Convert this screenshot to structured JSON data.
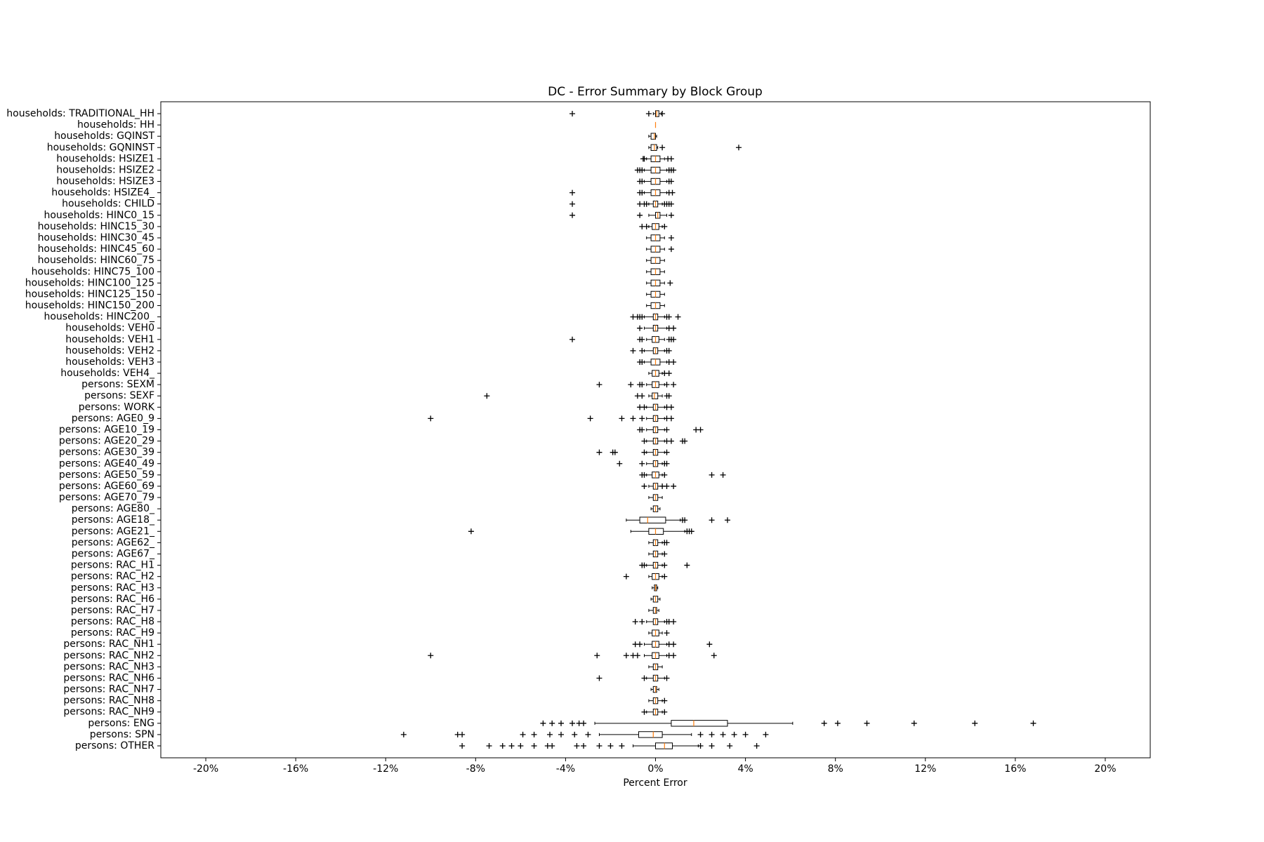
{
  "chart_data": {
    "type": "boxplot",
    "title": "DC - Error Summary by Block Group",
    "xlabel": "Percent Error",
    "orientation": "horizontal",
    "box_color": "#000000",
    "median_color": "#ff7f0e",
    "xlim": [
      -22,
      22
    ],
    "xticks": [
      {
        "value": -20,
        "label": "-20%"
      },
      {
        "value": -16,
        "label": "-16%"
      },
      {
        "value": -12,
        "label": "-12%"
      },
      {
        "value": -8,
        "label": "-8%"
      },
      {
        "value": -4,
        "label": "-4%"
      },
      {
        "value": 0,
        "label": "0%"
      },
      {
        "value": 4,
        "label": "4%"
      },
      {
        "value": 8,
        "label": "8%"
      },
      {
        "value": 12,
        "label": "12%"
      },
      {
        "value": 16,
        "label": "16%"
      },
      {
        "value": 20,
        "label": "20%"
      }
    ],
    "categories": [
      "households: TRADITIONAL_HH",
      "households: HH",
      "households: GQINST",
      "households: GQNINST",
      "households: HSIZE1",
      "households: HSIZE2",
      "households: HSIZE3",
      "households: HSIZE4_",
      "households: CHILD",
      "households: HINC0_15",
      "households: HINC15_30",
      "households: HINC30_45",
      "households: HINC45_60",
      "households: HINC60_75",
      "households: HINC75_100",
      "households: HINC100_125",
      "households: HINC125_150",
      "households: HINC150_200",
      "households: HINC200_",
      "households: VEH0",
      "households: VEH1",
      "households: VEH2",
      "households: VEH3",
      "households: VEH4_",
      "persons: SEXM",
      "persons: SEXF",
      "persons: WORK",
      "persons: AGE0_9",
      "persons: AGE10_19",
      "persons: AGE20_29",
      "persons: AGE30_39",
      "persons: AGE40_49",
      "persons: AGE50_59",
      "persons: AGE60_69",
      "persons: AGE70_79",
      "persons: AGE80_",
      "persons: AGE18_",
      "persons: AGE21_",
      "persons: AGE62_",
      "persons: AGE67_",
      "persons: RAC_H1",
      "persons: RAC_H2",
      "persons: RAC_H3",
      "persons: RAC_H6",
      "persons: RAC_H7",
      "persons: RAC_H8",
      "persons: RAC_H9",
      "persons: RAC_NH1",
      "persons: RAC_NH2",
      "persons: RAC_NH3",
      "persons: RAC_NH6",
      "persons: RAC_NH7",
      "persons: RAC_NH8",
      "persons: RAC_NH9",
      "persons: ENG",
      "persons: SPN",
      "persons: OTHER"
    ],
    "whislo": [
      -0.1,
      0,
      -0.3,
      -0.3,
      -0.4,
      -0.5,
      -0.5,
      -0.5,
      -0.3,
      -0.3,
      -0.3,
      -0.4,
      -0.4,
      -0.4,
      -0.4,
      -0.4,
      -0.4,
      -0.4,
      -0.5,
      -0.5,
      -0.4,
      -0.5,
      -0.5,
      -0.3,
      -0.4,
      -0.3,
      -0.4,
      -0.4,
      -0.4,
      -0.4,
      -0.4,
      -0.4,
      -0.4,
      -0.3,
      -0.3,
      -0.2,
      -1.3,
      -1.1,
      -0.3,
      -0.3,
      -0.4,
      -0.3,
      -0.15,
      -0.2,
      -0.3,
      -0.4,
      -0.3,
      -0.5,
      -0.5,
      -0.3,
      -0.4,
      -0.2,
      -0.3,
      -0.4,
      -2.7,
      -2.5,
      -1.0
    ],
    "q1": [
      0,
      0,
      -0.2,
      -0.2,
      -0.2,
      -0.2,
      -0.2,
      -0.2,
      -0.1,
      0,
      -0.15,
      -0.2,
      -0.2,
      -0.2,
      -0.2,
      -0.2,
      -0.2,
      -0.2,
      -0.1,
      -0.1,
      -0.15,
      -0.1,
      -0.2,
      -0.15,
      -0.15,
      -0.15,
      -0.1,
      -0.1,
      -0.1,
      -0.1,
      -0.1,
      -0.1,
      -0.15,
      -0.1,
      -0.1,
      -0.1,
      -0.7,
      -0.3,
      -0.1,
      -0.1,
      -0.1,
      -0.15,
      -0.05,
      -0.1,
      -0.1,
      -0.1,
      -0.15,
      -0.15,
      -0.15,
      -0.1,
      -0.1,
      -0.1,
      -0.1,
      -0.1,
      0.7,
      -0.75,
      0
    ],
    "med": [
      0.05,
      0,
      -0.05,
      -0.05,
      0,
      0,
      0,
      0,
      0,
      0.1,
      0,
      0,
      0,
      0,
      0,
      0,
      0,
      0,
      0,
      0,
      0,
      0,
      0,
      0,
      0,
      -0.05,
      0,
      0,
      0,
      0,
      0,
      0,
      0,
      0,
      0,
      0,
      -0.35,
      0,
      0,
      0,
      0,
      0,
      0,
      0,
      0,
      0,
      0,
      0,
      0,
      0,
      0,
      0,
      0,
      0,
      1.7,
      -0.1,
      0.4
    ],
    "q3": [
      0.15,
      0,
      0,
      0.05,
      0.2,
      0.2,
      0.2,
      0.2,
      0.1,
      0.2,
      0.15,
      0.2,
      0.2,
      0.2,
      0.2,
      0.2,
      0.2,
      0.2,
      0.1,
      0.1,
      0.15,
      0.1,
      0.2,
      0.15,
      0.15,
      0.1,
      0.1,
      0.1,
      0.1,
      0.1,
      0.1,
      0.1,
      0.15,
      0.1,
      0.1,
      0.1,
      0.45,
      0.35,
      0.1,
      0.1,
      0.1,
      0.15,
      0.05,
      0.1,
      0.05,
      0.1,
      0.15,
      0.15,
      0.15,
      0.1,
      0.1,
      0.05,
      0.1,
      0.1,
      3.2,
      0.3,
      0.75
    ],
    "whishi": [
      0.25,
      0,
      0.05,
      0.1,
      0.4,
      0.5,
      0.5,
      0.5,
      0.3,
      0.5,
      0.3,
      0.4,
      0.4,
      0.4,
      0.4,
      0.4,
      0.4,
      0.4,
      0.4,
      0.5,
      0.4,
      0.4,
      0.5,
      0.3,
      0.4,
      0.3,
      0.4,
      0.4,
      0.4,
      0.4,
      0.4,
      0.3,
      0.3,
      0.3,
      0.3,
      0.2,
      1.1,
      1.3,
      0.3,
      0.3,
      0.3,
      0.3,
      0.1,
      0.2,
      0.15,
      0.4,
      0.3,
      0.5,
      0.5,
      0.3,
      0.4,
      0.15,
      0.3,
      0.3,
      6.1,
      1.6,
      1.9
    ],
    "fliers": [
      [
        -3.7,
        -0.3,
        0.3
      ],
      [],
      [],
      [
        0.3,
        3.7
      ],
      [
        -0.55,
        -0.5,
        0.55,
        0.7
      ],
      [
        -0.8,
        -0.7,
        -0.6,
        0.6,
        0.7,
        0.8
      ],
      [
        -0.7,
        -0.6,
        0.6,
        0.7
      ],
      [
        -3.7,
        -0.7,
        -0.6,
        0.6,
        0.75
      ],
      [
        -3.7,
        -0.7,
        -0.5,
        -0.4,
        0.4,
        0.5,
        0.6,
        0.7
      ],
      [
        -3.7,
        -0.7,
        0.7
      ],
      [
        -0.6,
        -0.4,
        0.4
      ],
      [
        0.7
      ],
      [
        0.7
      ],
      [],
      [],
      [
        0.65
      ],
      [],
      [],
      [
        -1.0,
        -0.8,
        -0.7,
        -0.6,
        0.5,
        0.6,
        1.0
      ],
      [
        -0.7,
        0.6,
        0.8
      ],
      [
        -3.7,
        -0.7,
        -0.6,
        0.6,
        0.7,
        0.8
      ],
      [
        -1.0,
        -0.6,
        0.5,
        0.6
      ],
      [
        -0.7,
        -0.6,
        0.6,
        0.8
      ],
      [
        0.4,
        0.6
      ],
      [
        -2.5,
        -1.1,
        -0.7,
        -0.6,
        0.5,
        0.8
      ],
      [
        -7.5,
        -0.8,
        -0.6,
        0.5,
        0.6
      ],
      [
        -0.7,
        -0.5,
        0.5,
        0.7
      ],
      [
        -10,
        -2.9,
        -1.5,
        -1.0,
        -0.6,
        0.5,
        0.7
      ],
      [
        -0.7,
        -0.6,
        0.5,
        1.8,
        2.0
      ],
      [
        -0.5,
        0.5,
        0.7,
        1.2,
        1.3
      ],
      [
        -2.5,
        -1.9,
        -1.8,
        -0.5,
        0.5
      ],
      [
        -1.6,
        -0.6,
        0.4,
        0.5
      ],
      [
        -0.6,
        -0.5,
        0.4,
        2.5,
        3.0
      ],
      [
        -0.5,
        0.3,
        0.5,
        0.8
      ],
      [],
      [],
      [
        1.2,
        1.3,
        2.5,
        3.2
      ],
      [
        -8.2,
        1.4,
        1.5,
        1.6
      ],
      [
        0.4,
        0.5
      ],
      [
        0.4
      ],
      [
        -0.6,
        -0.5,
        0.4,
        1.4
      ],
      [
        -1.3,
        0.4
      ],
      [],
      [],
      [],
      [
        -0.9,
        -0.6,
        0.5,
        0.6,
        0.8
      ],
      [
        0.5
      ],
      [
        -0.9,
        -0.7,
        0.6,
        0.8,
        2.4
      ],
      [
        -10,
        -2.6,
        -1.3,
        -1.0,
        -0.8,
        0.6,
        0.8,
        2.6
      ],
      [],
      [
        -2.5,
        -0.5,
        0.5
      ],
      [],
      [
        0.4
      ],
      [
        -0.5,
        0.4
      ],
      [
        -5.0,
        -4.6,
        -4.2,
        -3.7,
        -3.4,
        -3.2,
        7.5,
        8.1,
        9.4,
        11.5,
        14.2,
        16.8
      ],
      [
        -11.2,
        -8.8,
        -8.6,
        -5.9,
        -5.4,
        -4.7,
        -4.2,
        -3.6,
        -3.0,
        2.0,
        2.5,
        3.0,
        3.5,
        4.0,
        4.9
      ],
      [
        -8.6,
        -7.4,
        -6.8,
        -6.4,
        -6.0,
        -5.4,
        -4.8,
        -4.6,
        -3.5,
        -3.2,
        -2.5,
        -2.0,
        -1.5,
        2.0,
        2.5,
        3.3,
        4.5
      ]
    ]
  }
}
